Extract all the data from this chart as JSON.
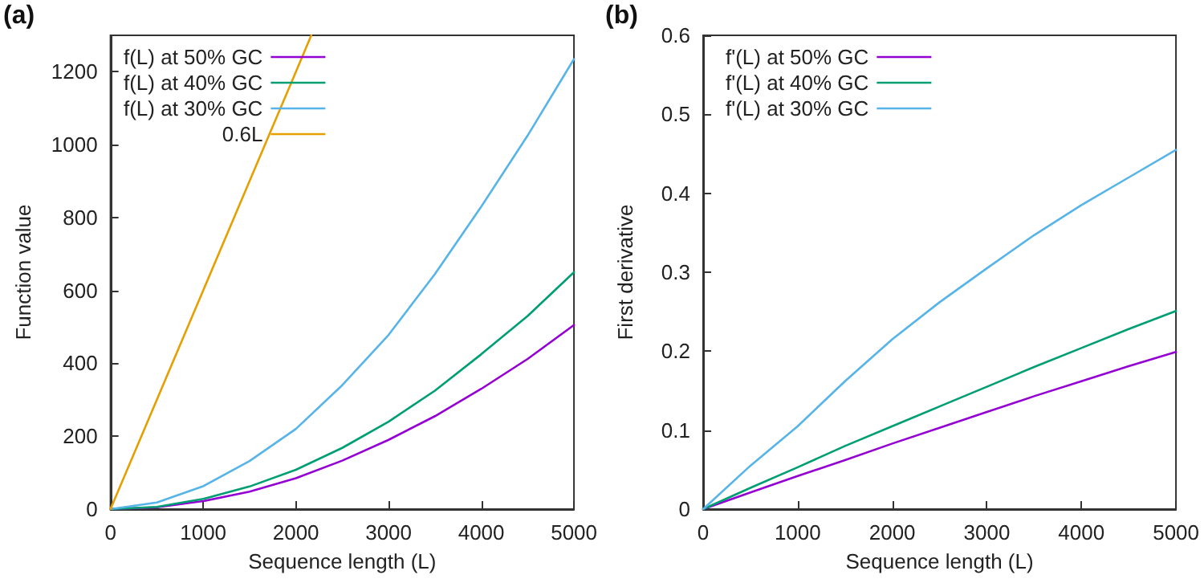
{
  "chart_data": [
    {
      "type": "line",
      "xlabel": "Sequence length (L)",
      "ylabel": "Function value",
      "annotations": [
        "(a)"
      ],
      "xlim": [
        0,
        5000
      ],
      "ylim": [
        0,
        1300
      ],
      "xticks": [
        0,
        1000,
        2000,
        3000,
        4000,
        5000
      ],
      "yticks": [
        0,
        200,
        400,
        600,
        800,
        1000,
        1200
      ],
      "legend": "top left",
      "grid": false,
      "x": [
        0,
        500,
        1000,
        1500,
        2000,
        2500,
        3000,
        3500,
        4000,
        4500,
        5000
      ],
      "series": [
        {
          "name": "f(L) at 50% GC",
          "color": "#9400d3",
          "values": [
            0,
            5,
            22,
            48,
            85,
            133,
            190,
            255,
            330,
            412,
            505
          ]
        },
        {
          "name": "f(L) at 40% GC",
          "color": "#009e73",
          "values": [
            0,
            6,
            28,
            62,
            108,
            168,
            240,
            325,
            425,
            530,
            650
          ]
        },
        {
          "name": "f(L) at 30% GC",
          "color": "#56b4e9",
          "values": [
            0,
            18,
            63,
            132,
            220,
            340,
            478,
            645,
            830,
            1025,
            1235
          ]
        },
        {
          "name": "0.6L",
          "color": "#e69f00",
          "x": [
            0,
            1000,
            2000,
            2166
          ],
          "values": [
            0,
            600,
            1200,
            1300
          ]
        }
      ]
    },
    {
      "type": "line",
      "xlabel": "Sequence length (L)",
      "ylabel": "First derivative",
      "annotations": [
        "(b)"
      ],
      "xlim": [
        0,
        5000
      ],
      "ylim": [
        0,
        0.6
      ],
      "xticks": [
        0,
        1000,
        2000,
        3000,
        4000,
        5000
      ],
      "yticks": [
        0,
        0.1,
        0.2,
        0.3,
        0.4,
        0.5,
        0.6
      ],
      "legend": "top left",
      "grid": false,
      "x": [
        0,
        500,
        1000,
        1500,
        2000,
        2500,
        3000,
        3500,
        4000,
        4500,
        5000
      ],
      "series": [
        {
          "name": "f'(L) at 50% GC",
          "color": "#9400d3",
          "values": [
            0,
            0.021,
            0.042,
            0.062,
            0.083,
            0.103,
            0.123,
            0.143,
            0.162,
            0.181,
            0.199
          ]
        },
        {
          "name": "f'(L) at 40% GC",
          "color": "#009e73",
          "values": [
            0,
            0.027,
            0.053,
            0.08,
            0.105,
            0.13,
            0.155,
            0.18,
            0.204,
            0.228,
            0.251
          ]
        },
        {
          "name": "f'(L) at 30% GC",
          "color": "#56b4e9",
          "values": [
            0,
            0.055,
            0.105,
            0.162,
            0.215,
            0.262,
            0.305,
            0.347,
            0.385,
            0.42,
            0.455
          ]
        }
      ]
    }
  ]
}
